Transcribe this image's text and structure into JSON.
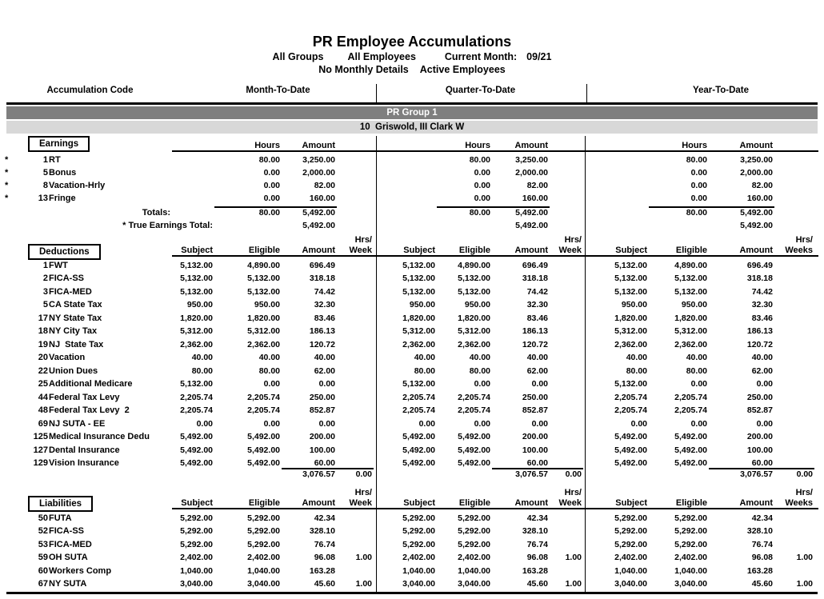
{
  "header": {
    "title": "PR Employee Accumulations",
    "filter_groups": "All Groups",
    "filter_employees": "All Employees",
    "current_month_label": "Current Month:",
    "current_month_value": "09/21",
    "filter_details": "No Monthly Details",
    "filter_active": "Active Employees"
  },
  "band": {
    "accumulation_code": "Accumulation Code",
    "mtd": "Month-To-Date",
    "qtd": "Quarter-To-Date",
    "ytd": "Year-To-Date"
  },
  "group_bar": {
    "label": "PR Group 1"
  },
  "employee_bar": {
    "number": "10",
    "name": "Griswold, III Clark W"
  },
  "column_headers": {
    "hours": "Hours",
    "amount": "Amount",
    "subject": "Subject",
    "eligible": "Eligible",
    "hrs": "Hrs/",
    "week": "Week",
    "weeks": "Weeks"
  },
  "colors": {
    "group_bar_bg": "#7f7f7f",
    "group_bar_text": "#ffffff",
    "employee_bar_bg": "#d8d8d8",
    "line": "#000000"
  },
  "earnings": {
    "label": "Earnings",
    "rows": [
      {
        "flag": "*",
        "code": "1",
        "name": "RT",
        "hours": "80.00",
        "amount": "3,250.00"
      },
      {
        "flag": "*",
        "code": "5",
        "name": "Bonus",
        "hours": "0.00",
        "amount": "2,000.00"
      },
      {
        "flag": "*",
        "code": "8",
        "name": "Vacation-Hrly",
        "hours": "0.00",
        "amount": "82.00"
      },
      {
        "flag": "*",
        "code": "13",
        "name": "Fringe",
        "hours": "0.00",
        "amount": "160.00"
      }
    ],
    "totals_label": "Totals:",
    "totals": {
      "hours": "80.00",
      "amount": "5,492.00"
    },
    "true_total_label": "* True Earnings Total:",
    "true_total_amount": "5,492.00"
  },
  "deductions": {
    "label": "Deductions",
    "rows": [
      {
        "code": "1",
        "name": "FWT",
        "subject": "5,132.00",
        "eligible": "4,890.00",
        "amount": "696.49",
        "week": ""
      },
      {
        "code": "2",
        "name": "FICA-SS",
        "subject": "5,132.00",
        "eligible": "5,132.00",
        "amount": "318.18",
        "week": ""
      },
      {
        "code": "3",
        "name": "FICA-MED",
        "subject": "5,132.00",
        "eligible": "5,132.00",
        "amount": "74.42",
        "week": ""
      },
      {
        "code": "5",
        "name": "CA State Tax",
        "subject": "950.00",
        "eligible": "950.00",
        "amount": "32.30",
        "week": ""
      },
      {
        "code": "17",
        "name": "NY State Tax",
        "subject": "1,820.00",
        "eligible": "1,820.00",
        "amount": "83.46",
        "week": ""
      },
      {
        "code": "18",
        "name": "NY City Tax",
        "subject": "5,312.00",
        "eligible": "5,312.00",
        "amount": "186.13",
        "week": ""
      },
      {
        "code": "19",
        "name": "NJ  State Tax",
        "subject": "2,362.00",
        "eligible": "2,362.00",
        "amount": "120.72",
        "week": ""
      },
      {
        "code": "20",
        "name": "Vacation",
        "subject": "40.00",
        "eligible": "40.00",
        "amount": "40.00",
        "week": ""
      },
      {
        "code": "22",
        "name": "Union Dues",
        "subject": "80.00",
        "eligible": "80.00",
        "amount": "62.00",
        "week": ""
      },
      {
        "code": "25",
        "name": "Additional Medicare",
        "subject": "5,132.00",
        "eligible": "0.00",
        "amount": "0.00",
        "week": ""
      },
      {
        "code": "44",
        "name": "Federal Tax Levy",
        "subject": "2,205.74",
        "eligible": "2,205.74",
        "amount": "250.00",
        "week": ""
      },
      {
        "code": "48",
        "name": "Federal Tax Levy  2",
        "subject": "2,205.74",
        "eligible": "2,205.74",
        "amount": "852.87",
        "week": ""
      },
      {
        "code": "69",
        "name": "NJ SUTA - EE",
        "subject": "0.00",
        "eligible": "0.00",
        "amount": "0.00",
        "week": ""
      },
      {
        "code": "125",
        "name": "Medical Insurance Dedu",
        "subject": "5,492.00",
        "eligible": "5,492.00",
        "amount": "200.00",
        "week": ""
      },
      {
        "code": "127",
        "name": "Dental Insurance",
        "subject": "5,492.00",
        "eligible": "5,492.00",
        "amount": "100.00",
        "week": ""
      },
      {
        "code": "129",
        "name": "Vision Insurance",
        "subject": "5,492.00",
        "eligible": "5,492.00",
        "amount": "60.00",
        "week": ""
      }
    ],
    "totals": {
      "amount": "3,076.57",
      "week": "0.00"
    }
  },
  "liabilities": {
    "label": "Liabilities",
    "rows": [
      {
        "code": "50",
        "name": "FUTA",
        "subject": "5,292.00",
        "eligible": "5,292.00",
        "amount": "42.34",
        "week": ""
      },
      {
        "code": "52",
        "name": "FICA-SS",
        "subject": "5,292.00",
        "eligible": "5,292.00",
        "amount": "328.10",
        "week": ""
      },
      {
        "code": "53",
        "name": "FICA-MED",
        "subject": "5,292.00",
        "eligible": "5,292.00",
        "amount": "76.74",
        "week": ""
      },
      {
        "code": "59",
        "name": "OH SUTA",
        "subject": "2,402.00",
        "eligible": "2,402.00",
        "amount": "96.08",
        "week": "1.00"
      },
      {
        "code": "60",
        "name": "Workers Comp",
        "subject": "1,040.00",
        "eligible": "1,040.00",
        "amount": "163.28",
        "week": ""
      },
      {
        "code": "67",
        "name": "NY SUTA",
        "subject": "3,040.00",
        "eligible": "3,040.00",
        "amount": "45.60",
        "week": "1.00"
      }
    ]
  }
}
